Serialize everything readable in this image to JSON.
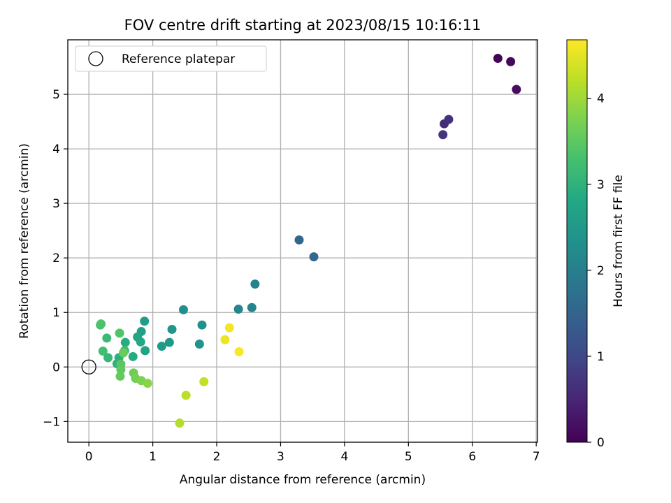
{
  "chart_data": {
    "type": "scatter",
    "title": "FOV centre drift starting at 2023/08/15 10:16:11",
    "xlabel": "Angular distance from reference (arcmin)",
    "ylabel": "Rotation from reference (arcmin)",
    "xlim": [
      -0.33,
      7.02
    ],
    "ylim": [
      -1.38,
      6.0
    ],
    "xticks": [
      0,
      1,
      2,
      3,
      4,
      5,
      6,
      7
    ],
    "yticks": [
      -1,
      0,
      1,
      2,
      3,
      4,
      5
    ],
    "x_tick_labels": [
      "0",
      "1",
      "2",
      "3",
      "4",
      "5",
      "6",
      "7"
    ],
    "y_tick_labels": [
      "−1",
      "0",
      "1",
      "2",
      "3",
      "4",
      "5"
    ],
    "grid": true,
    "legend": {
      "position": "top-left",
      "label": "Reference platepar"
    },
    "reference_point": {
      "x": 0,
      "y": 0
    },
    "colorbar": {
      "label": "Hours from first FF file",
      "colormap": "viridis",
      "range": [
        0,
        4.68
      ],
      "ticks": [
        0,
        1,
        2,
        3,
        4
      ],
      "tick_labels": [
        "0",
        "1",
        "2",
        "3",
        "4"
      ]
    },
    "points": [
      {
        "x": 6.4,
        "y": 5.66,
        "c": 0.05
      },
      {
        "x": 6.6,
        "y": 5.6,
        "c": 0.1
      },
      {
        "x": 6.69,
        "y": 5.09,
        "c": 0.15
      },
      {
        "x": 5.56,
        "y": 4.46,
        "c": 0.6
      },
      {
        "x": 5.63,
        "y": 4.54,
        "c": 0.65
      },
      {
        "x": 5.54,
        "y": 4.26,
        "c": 0.7
      },
      {
        "x": 3.29,
        "y": 2.33,
        "c": 1.55
      },
      {
        "x": 3.52,
        "y": 2.02,
        "c": 1.6
      },
      {
        "x": 2.6,
        "y": 1.52,
        "c": 2.05
      },
      {
        "x": 2.55,
        "y": 1.09,
        "c": 2.1
      },
      {
        "x": 2.34,
        "y": 1.06,
        "c": 2.15
      },
      {
        "x": 1.48,
        "y": 1.05,
        "c": 2.3
      },
      {
        "x": 1.77,
        "y": 0.77,
        "c": 2.35
      },
      {
        "x": 1.73,
        "y": 0.42,
        "c": 2.4
      },
      {
        "x": 1.3,
        "y": 0.69,
        "c": 2.45
      },
      {
        "x": 1.26,
        "y": 0.45,
        "c": 2.5
      },
      {
        "x": 1.14,
        "y": 0.38,
        "c": 2.55
      },
      {
        "x": 0.87,
        "y": 0.84,
        "c": 2.6
      },
      {
        "x": 0.82,
        "y": 0.65,
        "c": 2.65
      },
      {
        "x": 0.88,
        "y": 0.3,
        "c": 2.7
      },
      {
        "x": 0.76,
        "y": 0.55,
        "c": 2.75
      },
      {
        "x": 0.81,
        "y": 0.46,
        "c": 2.8
      },
      {
        "x": 0.69,
        "y": 0.19,
        "c": 2.85
      },
      {
        "x": 0.57,
        "y": 0.45,
        "c": 2.9
      },
      {
        "x": 0.47,
        "y": 0.17,
        "c": 2.95
      },
      {
        "x": 0.44,
        "y": 0.06,
        "c": 3.0
      },
      {
        "x": 0.3,
        "y": 0.17,
        "c": 3.1
      },
      {
        "x": 0.28,
        "y": 0.53,
        "c": 3.15
      },
      {
        "x": 0.56,
        "y": 0.3,
        "c": 3.2
      },
      {
        "x": 0.22,
        "y": 0.29,
        "c": 3.25
      },
      {
        "x": 0.18,
        "y": 0.77,
        "c": 3.3
      },
      {
        "x": 0.19,
        "y": 0.79,
        "c": 3.35
      },
      {
        "x": 0.48,
        "y": 0.62,
        "c": 3.4
      },
      {
        "x": 0.5,
        "y": 0.05,
        "c": 3.45
      },
      {
        "x": 0.5,
        "y": -0.05,
        "c": 3.5
      },
      {
        "x": 0.49,
        "y": -0.17,
        "c": 3.55
      },
      {
        "x": 0.54,
        "y": 0.26,
        "c": 3.6
      },
      {
        "x": 0.7,
        "y": -0.11,
        "c": 3.65
      },
      {
        "x": 0.73,
        "y": -0.21,
        "c": 3.7
      },
      {
        "x": 0.82,
        "y": -0.25,
        "c": 3.75
      },
      {
        "x": 0.92,
        "y": -0.3,
        "c": 3.85
      },
      {
        "x": 1.42,
        "y": -1.03,
        "c": 4.15
      },
      {
        "x": 1.52,
        "y": -0.52,
        "c": 4.2
      },
      {
        "x": 1.8,
        "y": -0.27,
        "c": 4.25
      },
      {
        "x": 2.13,
        "y": 0.5,
        "c": 4.55
      },
      {
        "x": 2.2,
        "y": 0.72,
        "c": 4.6
      },
      {
        "x": 2.35,
        "y": 0.28,
        "c": 4.65
      }
    ]
  }
}
